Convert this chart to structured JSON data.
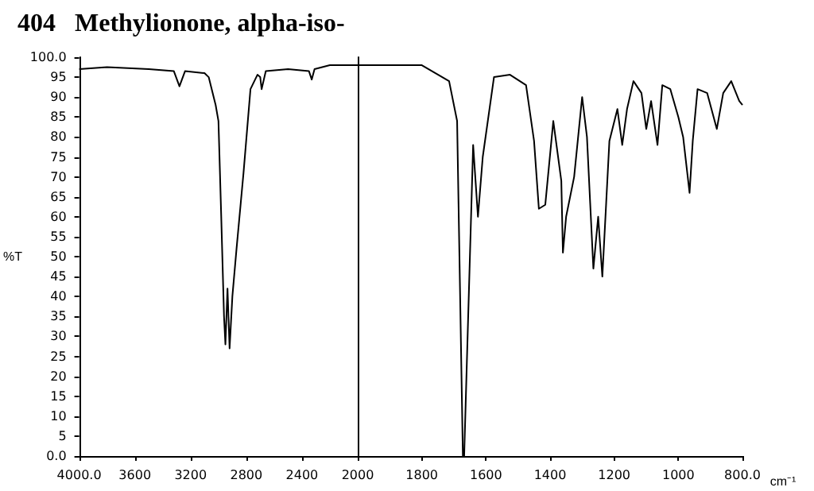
{
  "chart_data": [
    {
      "type": "line",
      "title": "404   Methylionone, alpha-iso-",
      "ylabel": "%T",
      "xlim": [
        4000,
        2000
      ],
      "ylim": [
        0,
        100
      ],
      "xticks": [
        {
          "value": 4000,
          "label": "4000.0"
        },
        3600,
        3200,
        2800,
        2400,
        2000
      ],
      "yticks": [
        {
          "value": 0,
          "label": "0.0"
        },
        5,
        10,
        15,
        20,
        25,
        30,
        35,
        40,
        45,
        50,
        55,
        60,
        65,
        70,
        75,
        80,
        85,
        90,
        95,
        {
          "value": 100,
          "label": "100.0"
        }
      ],
      "marker": "none",
      "series": [
        {
          "color": "#000000",
          "x": [
            4000,
            3800,
            3500,
            3320,
            3280,
            3240,
            3100,
            3070,
            3020,
            3000,
            2980,
            2960,
            2950,
            2935,
            2920,
            2900,
            2870,
            2820,
            2770,
            2720,
            2700,
            2690,
            2660,
            2500,
            2350,
            2330,
            2310,
            2200,
            2000
          ],
          "values": [
            97,
            97.5,
            97,
            96.5,
            92.7,
            96.5,
            96,
            95,
            88,
            84,
            60,
            35,
            28,
            42,
            27,
            40,
            52,
            71,
            92,
            95.6,
            95,
            92,
            96.5,
            97,
            96.5,
            94.4,
            97,
            98,
            98
          ]
        }
      ]
    },
    {
      "type": "line",
      "xlabel": "cm⁻¹",
      "xlim": [
        2000,
        800
      ],
      "ylim": [
        0,
        100
      ],
      "tick_labels": "x",
      "xticks": [
        1800,
        1600,
        1400,
        1200,
        1000,
        {
          "value": 800,
          "label": "800.0"
        }
      ],
      "marker": "none",
      "series": [
        {
          "color": "#000000",
          "x": [
            2000,
            1800,
            1715,
            1690,
            1672,
            1668,
            1640,
            1625,
            1610,
            1575,
            1525,
            1475,
            1450,
            1435,
            1415,
            1390,
            1365,
            1360,
            1350,
            1325,
            1300,
            1285,
            1265,
            1250,
            1237,
            1215,
            1190,
            1175,
            1160,
            1140,
            1115,
            1100,
            1085,
            1065,
            1050,
            1025,
            1000,
            985,
            965,
            955,
            940,
            910,
            880,
            860,
            835,
            810,
            800
          ],
          "values": [
            98,
            98,
            94,
            84,
            0,
            0,
            78,
            60,
            75,
            95,
            95.6,
            93,
            79,
            62,
            63,
            84,
            69,
            51,
            60,
            70,
            90,
            80,
            47,
            60,
            45,
            79,
            87,
            78,
            87,
            94,
            91,
            82,
            89,
            78,
            93,
            92,
            85,
            80,
            66,
            79,
            92,
            91,
            82,
            91,
            94,
            89,
            88
          ]
        }
      ]
    }
  ]
}
